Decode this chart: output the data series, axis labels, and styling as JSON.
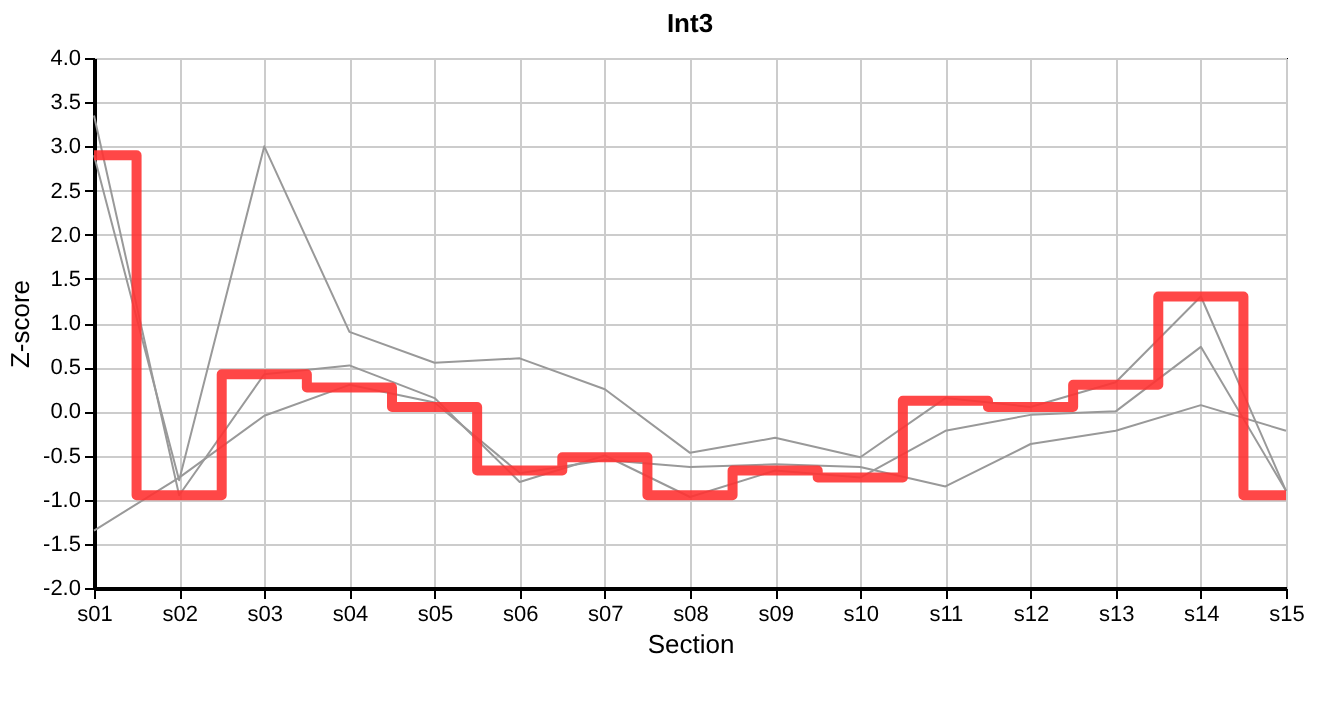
{
  "chart_data": {
    "type": "line",
    "title": "Int3",
    "xlabel": "Section",
    "ylabel": "Z-score",
    "categories": [
      "s01",
      "s02",
      "s03",
      "s04",
      "s05",
      "s06",
      "s07",
      "s08",
      "s09",
      "s10",
      "s11",
      "s12",
      "s13",
      "s14",
      "s15"
    ],
    "series": [
      {
        "color": "#999999",
        "values": [
          2.9,
          -0.78,
          3.0,
          0.9,
          0.55,
          0.6,
          0.25,
          -0.47,
          -0.3,
          -0.52,
          0.15,
          0.05,
          0.33,
          1.3,
          -0.9
        ]
      },
      {
        "color": "#999999",
        "values": [
          -1.35,
          -0.75,
          -0.05,
          0.3,
          0.1,
          -0.7,
          -0.55,
          -0.63,
          -0.6,
          -0.63,
          -0.85,
          -0.37,
          -0.22,
          0.07,
          -0.22
        ]
      },
      {
        "color": "#999999",
        "values": [
          3.35,
          -0.95,
          0.42,
          0.52,
          0.15,
          -0.8,
          -0.5,
          -0.97,
          -0.67,
          -0.75,
          -0.22,
          -0.04,
          0.0,
          0.73,
          -0.9
        ]
      },
      {
        "type": "step",
        "color": "#ff3333",
        "values": [
          2.9,
          -0.95,
          0.42,
          0.27,
          0.05,
          -0.67,
          -0.52,
          -0.95,
          -0.67,
          -0.75,
          0.12,
          0.05,
          0.3,
          1.3,
          -0.95
        ]
      }
    ],
    "ylim": [
      -2,
      4
    ],
    "yticks": [
      {
        "value": -2,
        "label": "-2.0"
      },
      {
        "value": -1.5,
        "label": "-1.5"
      },
      {
        "value": -1,
        "label": "-1.0"
      },
      {
        "value": -0.5,
        "label": "-0.5"
      },
      {
        "value": 0,
        "label": "0.0"
      },
      {
        "value": 0.5,
        "label": "0.5"
      },
      {
        "value": 1,
        "label": "1.0"
      },
      {
        "value": 1.5,
        "label": "1.5"
      },
      {
        "value": 2,
        "label": "2.0"
      },
      {
        "value": 2.5,
        "label": "2.5"
      },
      {
        "value": 3,
        "label": "3.0"
      },
      {
        "value": 3.5,
        "label": "3.5"
      },
      {
        "value": 4,
        "label": "4.0"
      }
    ],
    "grid": true,
    "marker": "none",
    "line_style": "solid"
  }
}
